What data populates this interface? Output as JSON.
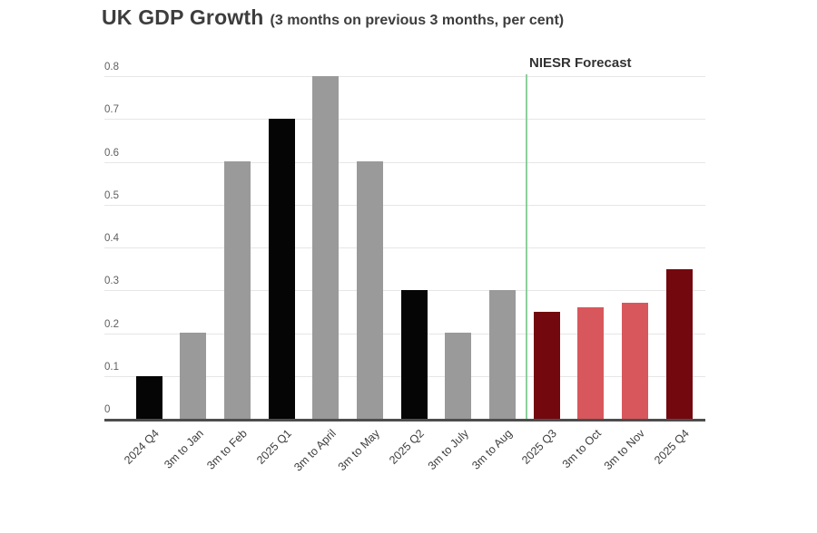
{
  "header": {
    "title": "UK GDP Growth",
    "subtitle": "(3 months on previous 3 months, per cent)"
  },
  "chart_data": {
    "type": "bar",
    "title": "UK GDP Growth",
    "subtitle": "(3 months on previous 3 months, per cent)",
    "categories": [
      "2024 Q4",
      "3m to Jan",
      "3m to Feb",
      "2025 Q1",
      "3m to April",
      "3m to May",
      "2025 Q2",
      "3m to July",
      "3m to Aug",
      "2025 Q3",
      "3m to Oct",
      "3m to Nov",
      "2025 Q4"
    ],
    "values": [
      0.1,
      0.2,
      0.6,
      0.7,
      0.8,
      0.6,
      0.3,
      0.2,
      0.3,
      0.25,
      0.26,
      0.27,
      0.35
    ],
    "bar_colors": [
      "#050505",
      "#9a9a9a",
      "#9a9a9a",
      "#050505",
      "#9a9a9a",
      "#9a9a9a",
      "#050505",
      "#9a9a9a",
      "#9a9a9a",
      "#73080e",
      "#d8575c",
      "#d8575c",
      "#73080e"
    ],
    "color_legend": {
      "actual_quarter": "#050505",
      "actual_month": "#9a9a9a",
      "forecast_quarter": "#73080e",
      "forecast_month": "#d8575c"
    },
    "xlabel": "",
    "ylabel": "",
    "ylim": [
      0,
      0.8
    ],
    "yticks": [
      0,
      0.1,
      0.2,
      0.3,
      0.4,
      0.5,
      0.6,
      0.7,
      0.8
    ],
    "ytick_labels": [
      "0",
      "0.1",
      "0.2",
      "0.3",
      "0.4",
      "0.5",
      "0.6",
      "0.7",
      "0.8"
    ],
    "grid": "horizontal",
    "gridline_color": "#e6e6e6",
    "axis_color": "#4d4d4d",
    "forecast": {
      "label": "NIESR Forecast",
      "starts_at_category_index": 9,
      "line_color": "#8ccf9c"
    }
  }
}
